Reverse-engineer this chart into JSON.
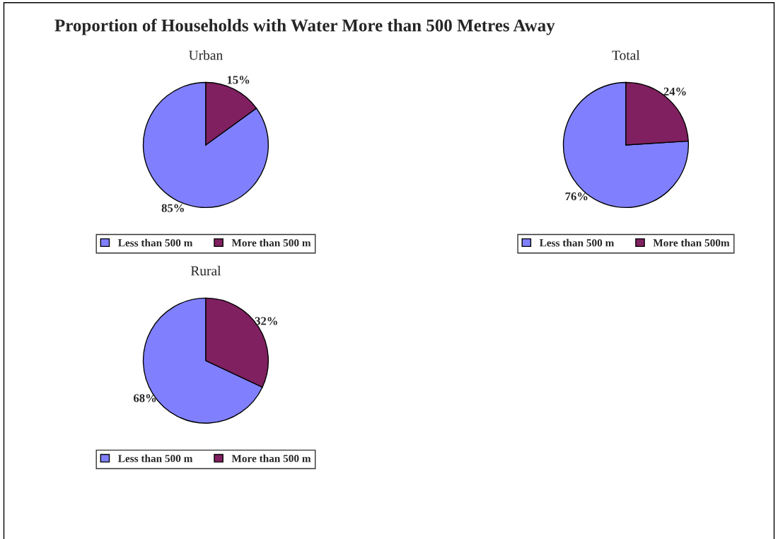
{
  "chart_data": [
    {
      "type": "pie",
      "title": "Proportion of Households with Water More than 500 Metres Away",
      "subtitle": "Urban",
      "categories": [
        "Less than 500 m",
        "More than 500 m"
      ],
      "values": [
        85,
        15
      ],
      "value_labels": [
        "85%",
        "15%"
      ],
      "colors": [
        "#8080ff",
        "#802060"
      ],
      "legend": "bottom"
    },
    {
      "type": "pie",
      "subtitle": "Total",
      "categories": [
        "Less than 500 m",
        "More than 500m"
      ],
      "values": [
        76,
        24
      ],
      "value_labels": [
        "76%",
        "24%"
      ],
      "colors": [
        "#8080ff",
        "#802060"
      ],
      "legend": "bottom"
    },
    {
      "type": "pie",
      "subtitle": "Rural",
      "categories": [
        "Less than 500 m",
        "More than 500 m"
      ],
      "values": [
        68,
        32
      ],
      "value_labels": [
        "68%",
        "32%"
      ],
      "colors": [
        "#8080ff",
        "#802060"
      ],
      "legend": "bottom"
    }
  ]
}
